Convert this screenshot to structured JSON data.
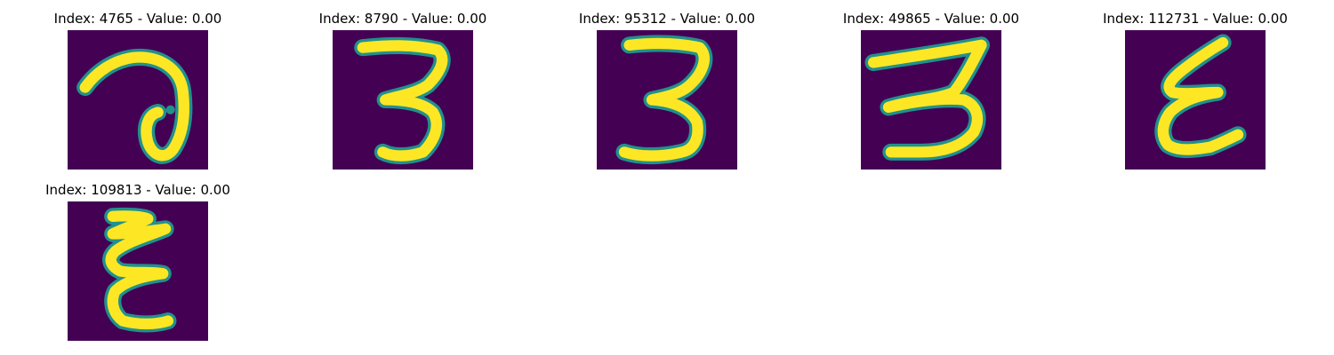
{
  "colors": {
    "background": "#440154",
    "edge": "#21918c",
    "stroke": "#fde725"
  },
  "panels": [
    {
      "title": "Index: 4765 - Value: 0.00",
      "glyph": "digit-like stroke"
    },
    {
      "title": "Index: 8790 - Value: 0.00",
      "glyph": "3"
    },
    {
      "title": "Index: 95312 - Value: 0.00",
      "glyph": "3"
    },
    {
      "title": "Index: 49865 - Value: 0.00",
      "glyph": "3"
    },
    {
      "title": "Index: 112731 - Value: 0.00",
      "glyph": "ε"
    },
    {
      "title": "Index: 109813 - Value: 0.00",
      "glyph": "ε"
    }
  ]
}
